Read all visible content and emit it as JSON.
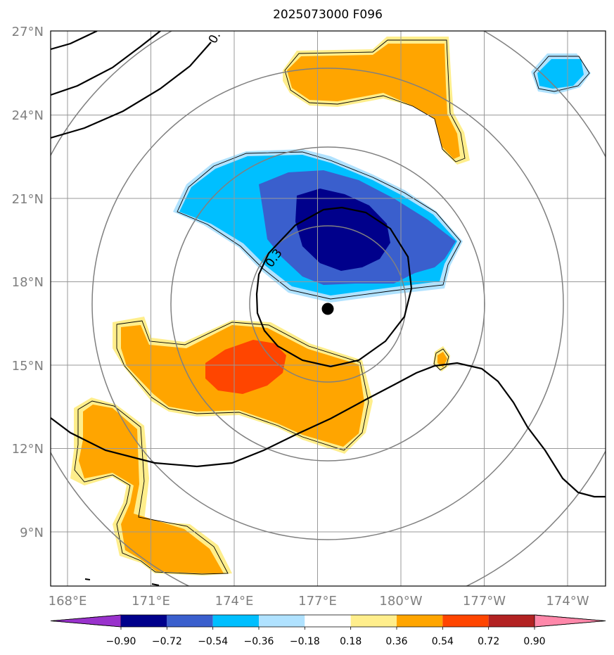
{
  "title": "2025073000 F096",
  "map": {
    "lat_ticks": [
      "27°N",
      "24°N",
      "21°N",
      "18°N",
      "15°N",
      "12°N",
      "9°N"
    ],
    "lon_ticks": [
      "168°E",
      "171°E",
      "174°E",
      "177°E",
      "180°W",
      "177°W",
      "174°W"
    ],
    "contour_label_top": "0.",
    "contour_label_mid": "0.3",
    "colors": {
      "neg_0.90": "#00008b",
      "neg_0.72": "#3a5fcd",
      "neg_0.54": "#00bfff",
      "neg_0.36": "#b0e2ff",
      "pos_0.18": "#ffee8c",
      "pos_0.36": "#ffa500",
      "pos_0.54": "#ff4500",
      "pos_0.72": "#b22222",
      "pos_0.90": "#ff88aa",
      "low_end": "#9932cc"
    }
  },
  "colorbar": {
    "labels": [
      "−0.90",
      "−0.72",
      "−0.54",
      "−0.36",
      "−0.18",
      "0.18",
      "0.36",
      "0.54",
      "0.72",
      "0.90"
    ],
    "colors": [
      "#9932cc",
      "#00008b",
      "#3a5fcd",
      "#00bfff",
      "#b0e2ff",
      "#ffffff",
      "#ffee8c",
      "#ffa500",
      "#ff4500",
      "#b22222",
      "#ff88aa"
    ]
  }
}
